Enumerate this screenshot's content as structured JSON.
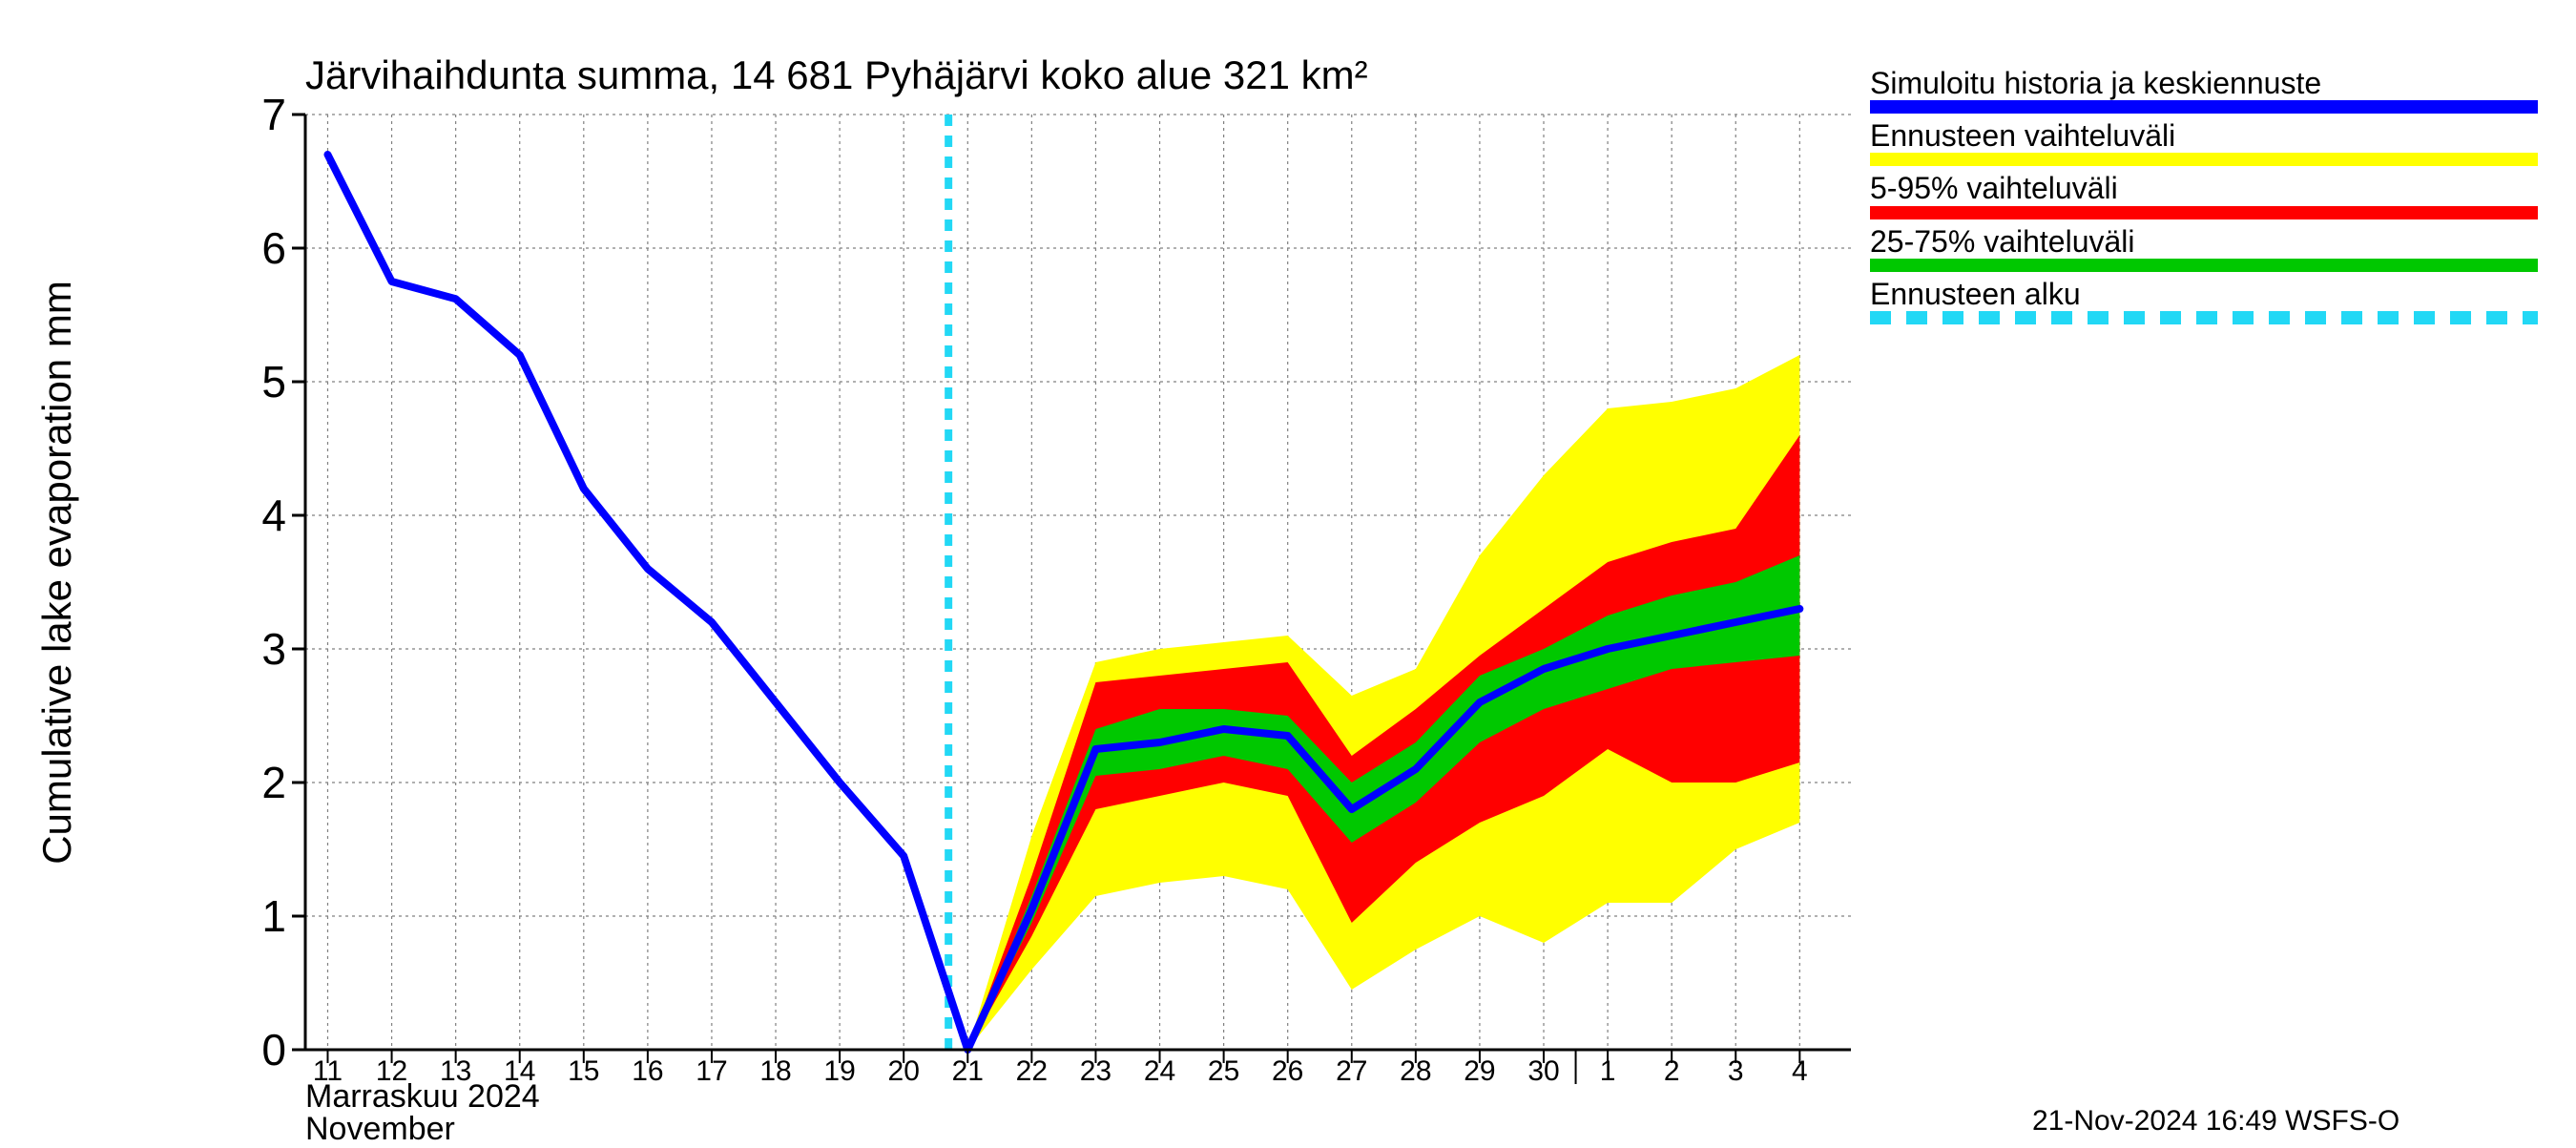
{
  "chart": {
    "type": "line-with-bands",
    "title": "Järvihaihdunta summa, 14 681 Pyhäjärvi koko alue 321 km²",
    "title_fontsize": 42,
    "ylabel": "Cumulative lake evaporation    mm",
    "ylabel_fontsize": 42,
    "background_color": "#ffffff",
    "grid_color": "#808080",
    "grid_dash": "3,4",
    "axis_color": "#000000",
    "ylim": [
      0,
      7
    ],
    "ytick_step": 1,
    "yticks": [
      0,
      1,
      2,
      3,
      4,
      5,
      6,
      7
    ],
    "x_categories": [
      "11",
      "12",
      "13",
      "14",
      "15",
      "16",
      "17",
      "18",
      "19",
      "20",
      "21",
      "22",
      "23",
      "24",
      "25",
      "26",
      "27",
      "28",
      "29",
      "30",
      "1",
      "2",
      "3",
      "4"
    ],
    "x_month_labels": [
      "Marraskuu 2024",
      "November"
    ],
    "month_boundary_index": 20,
    "forecast_start_index": 9.7,
    "forecast_start_color": "#22d8f5",
    "forecast_start_dash": "12,10",
    "forecast_start_width": 8,
    "series_line": {
      "color": "#0000ff",
      "width": 8,
      "values": [
        6.7,
        5.75,
        5.62,
        5.2,
        4.2,
        3.6,
        3.2,
        2.6,
        2.0,
        1.45,
        0.0,
        1.05,
        2.25,
        2.3,
        2.4,
        2.35,
        1.8,
        2.1,
        2.6,
        2.85,
        3.0,
        3.1,
        3.2,
        3.3
      ]
    },
    "band_yellow": {
      "color": "#ffff00",
      "upper": [
        null,
        null,
        null,
        null,
        null,
        null,
        null,
        null,
        null,
        null,
        0.0,
        1.6,
        2.9,
        3.0,
        3.05,
        3.1,
        2.65,
        2.85,
        3.7,
        4.3,
        4.8,
        4.85,
        4.95,
        5.2
      ],
      "lower": [
        null,
        null,
        null,
        null,
        null,
        null,
        null,
        null,
        null,
        null,
        0.0,
        0.6,
        1.15,
        1.25,
        1.3,
        1.2,
        0.45,
        0.75,
        1.0,
        0.8,
        1.1,
        1.1,
        1.5,
        1.7
      ]
    },
    "band_red": {
      "color": "#ff0000",
      "upper": [
        null,
        null,
        null,
        null,
        null,
        null,
        null,
        null,
        null,
        null,
        0.0,
        1.3,
        2.75,
        2.8,
        2.85,
        2.9,
        2.2,
        2.55,
        2.95,
        3.3,
        3.65,
        3.8,
        3.9,
        4.6
      ],
      "lower": [
        null,
        null,
        null,
        null,
        null,
        null,
        null,
        null,
        null,
        null,
        0.0,
        0.85,
        1.8,
        1.9,
        2.0,
        1.9,
        0.95,
        1.4,
        1.7,
        1.9,
        2.25,
        2.0,
        2.0,
        2.15
      ]
    },
    "band_green": {
      "color": "#00c800",
      "upper": [
        null,
        null,
        null,
        null,
        null,
        null,
        null,
        null,
        null,
        null,
        0.0,
        1.15,
        2.4,
        2.55,
        2.55,
        2.5,
        2.0,
        2.3,
        2.8,
        3.0,
        3.25,
        3.4,
        3.5,
        3.7
      ],
      "lower": [
        null,
        null,
        null,
        null,
        null,
        null,
        null,
        null,
        null,
        null,
        0.0,
        0.95,
        2.05,
        2.1,
        2.2,
        2.1,
        1.55,
        1.85,
        2.3,
        2.55,
        2.7,
        2.85,
        2.9,
        2.95
      ]
    },
    "xlim_fraction_start": -0.35,
    "xlim_fraction_end": 23.8,
    "tick_fontsize_x": 30,
    "tick_fontsize_y": 46,
    "timestamp": "21-Nov-2024 16:49 WSFS-O"
  },
  "legend": {
    "items": [
      {
        "label": "Simuloitu historia ja keskiennuste",
        "swatch_color": "#0000ff",
        "style": "solid"
      },
      {
        "label": "Ennusteen vaihteluväli",
        "swatch_color": "#ffff00",
        "style": "solid"
      },
      {
        "label": "5-95% vaihteluväli",
        "swatch_color": "#ff0000",
        "style": "solid"
      },
      {
        "label": "25-75% vaihteluväli",
        "swatch_color": "#00c800",
        "style": "solid"
      },
      {
        "label": "Ennusteen alku",
        "swatch_color": "#22d8f5",
        "style": "dashed"
      }
    ]
  }
}
